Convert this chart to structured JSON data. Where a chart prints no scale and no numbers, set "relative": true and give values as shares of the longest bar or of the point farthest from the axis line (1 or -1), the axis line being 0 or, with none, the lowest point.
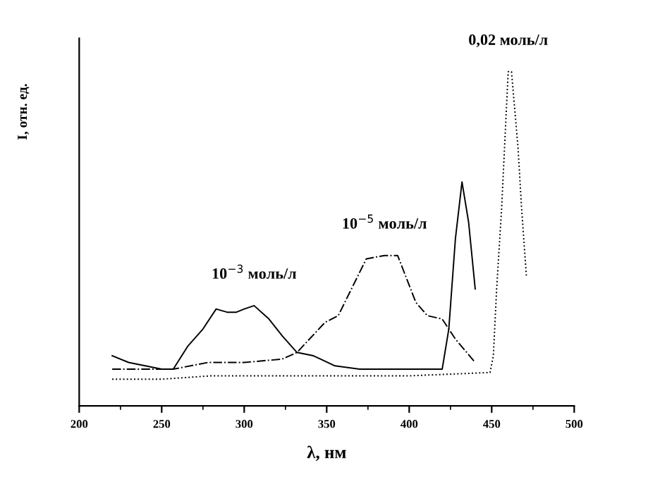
{
  "chart_data": {
    "type": "line",
    "relative": true,
    "xlabel": "λ, нм",
    "ylabel": "I, отн. ед.",
    "xlim": [
      200,
      500
    ],
    "xticks": [
      200,
      250,
      300,
      350,
      400,
      450,
      500
    ],
    "grid": false,
    "marker": "none",
    "series": [
      {
        "name": "10$^{−3}$ моль/л",
        "color": "#000000",
        "line_style": "solid",
        "x": [
          220,
          230,
          240,
          250,
          257,
          266,
          275,
          283,
          290,
          295,
          300,
          306,
          315,
          323,
          332,
          342,
          355,
          370,
          390,
          410,
          420,
          424,
          428,
          432,
          436,
          440
        ],
        "values": [
          0.15,
          0.13,
          0.12,
          0.11,
          0.11,
          0.18,
          0.23,
          0.29,
          0.28,
          0.28,
          0.29,
          0.3,
          0.26,
          0.21,
          0.16,
          0.15,
          0.12,
          0.11,
          0.11,
          0.11,
          0.11,
          0.23,
          0.5,
          0.67,
          0.55,
          0.35
        ]
      },
      {
        "name": "10$^{−5}$ моль/л",
        "color": "#000000",
        "line_style": "dashdot",
        "x": [
          220,
          240,
          257,
          278,
          300,
          323,
          332,
          349,
          357,
          366,
          374,
          385,
          393,
          404,
          411,
          420,
          428,
          440
        ],
        "values": [
          0.11,
          0.11,
          0.11,
          0.13,
          0.13,
          0.14,
          0.16,
          0.25,
          0.27,
          0.36,
          0.44,
          0.45,
          0.45,
          0.31,
          0.27,
          0.26,
          0.2,
          0.13
        ]
      },
      {
        "name": "0,02 моль/л",
        "color": "#000000",
        "line_style": "dotted",
        "x": [
          220,
          250,
          280,
          320,
          347,
          400,
          449,
          451,
          453,
          456,
          460,
          462,
          466,
          468,
          471
        ],
        "values": [
          0.08,
          0.08,
          0.09,
          0.09,
          0.09,
          0.09,
          0.1,
          0.15,
          0.35,
          0.59,
          1.0,
          1.0,
          0.77,
          0.6,
          0.39
        ]
      }
    ]
  }
}
